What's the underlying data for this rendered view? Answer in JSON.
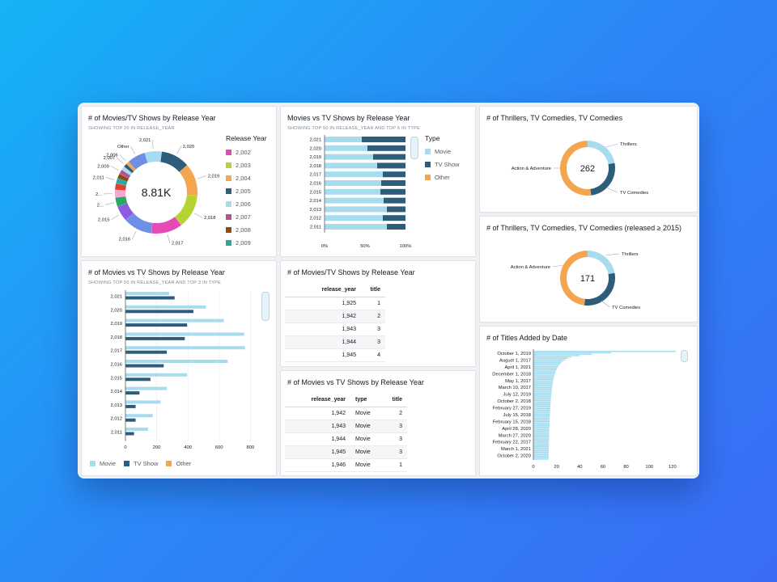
{
  "panel1": {
    "title": "# of Movies/TV Shows by Release Year",
    "subtitle": "SHOWING TOP 20 IN RELEASE_YEAR",
    "center_value": "8.81K",
    "legend_title": "Release Year"
  },
  "panel2": {
    "title": "Movies vs TV Shows by Release Year",
    "subtitle": "SHOWING TOP 50 IN RELEASE_YEAR AND TOP 5 IN TYPE",
    "legend_title": "Type"
  },
  "panel3": {
    "title": "# of Thrillers, TV Comedies, TV Comedies",
    "center_value": "262"
  },
  "panel4": {
    "title": "# of Thrillers, TV Comedies, TV Comedies (released ≥ 2015)",
    "center_value": "171"
  },
  "panel5": {
    "title": "# of Movies vs TV Shows by Release Year",
    "subtitle": "SHOWING TOP 50 IN RELEASE_YEAR AND TOP 3 IN TYPE"
  },
  "panel6": {
    "title": "# of Movies/TV Shows by Release Year",
    "columns": [
      "release_year",
      "title"
    ],
    "rows": [
      [
        "1,925",
        "1"
      ],
      [
        "1,942",
        "2"
      ],
      [
        "1,943",
        "3"
      ],
      [
        "1,944",
        "3"
      ],
      [
        "1,945",
        "4"
      ]
    ]
  },
  "panel7": {
    "title": "# of Movies vs TV Shows by Release Year",
    "columns": [
      "release_year",
      "type",
      "title"
    ],
    "rows": [
      [
        "1,942",
        "Movie",
        "2"
      ],
      [
        "1,943",
        "Movie",
        "3"
      ],
      [
        "1,944",
        "Movie",
        "3"
      ],
      [
        "1,945",
        "Movie",
        "3"
      ],
      [
        "1,946",
        "Movie",
        "1"
      ]
    ]
  },
  "panel8": {
    "title": "# of Titles Added by Date"
  },
  "colors": {
    "movie": "#a6dcee",
    "tvshow": "#2e5c7b",
    "other": "#f3a54f"
  },
  "chart_data": [
    {
      "id": "donut-release-year",
      "type": "pie",
      "title": "# of Movies/TV Shows by Release Year",
      "total_label": "8.81K",
      "legend_title": "Release Year",
      "legend": [
        {
          "label": "2,002",
          "color": "#e64ab5"
        },
        {
          "label": "2,003",
          "color": "#b6d334"
        },
        {
          "label": "2,004",
          "color": "#f3a54f"
        },
        {
          "label": "2,005",
          "color": "#2e5c7b"
        },
        {
          "label": "2,006",
          "color": "#a6dcee"
        },
        {
          "label": "2,007",
          "color": "#b05494"
        },
        {
          "label": "2,008",
          "color": "#8a4b14"
        },
        {
          "label": "2,009",
          "color": "#25a9a5"
        }
      ],
      "slice_labels": [
        "2,021",
        "2,020",
        "2,019",
        "2,018",
        "2,017",
        "2,016",
        "2,015",
        "2...",
        "2...",
        "2,011",
        "2,009",
        "2,006",
        "Other"
      ],
      "slices": [
        {
          "label": "2,021",
          "value": 0.065,
          "color": "#a6dcee"
        },
        {
          "label": "2,020",
          "value": 0.11,
          "color": "#2e5c7b"
        },
        {
          "label": "2,019",
          "value": 0.125,
          "color": "#f3a54f"
        },
        {
          "label": "2,018",
          "value": 0.13,
          "color": "#b6d334"
        },
        {
          "label": "2,017",
          "value": 0.12,
          "color": "#e64ab5"
        },
        {
          "label": "2,016",
          "value": 0.11,
          "color": "#6f8fe6"
        },
        {
          "label": "2,015",
          "value": 0.06,
          "color": "#8e5be0"
        },
        {
          "label": "2,014",
          "value": 0.035,
          "color": "#2ba866"
        },
        {
          "label": "2,013",
          "value": 0.03,
          "color": "#f6a6d0"
        },
        {
          "label": "2,012",
          "value": 0.025,
          "color": "#e0412d"
        },
        {
          "label": "2,011",
          "value": 0.02,
          "color": "#25a9a5"
        },
        {
          "label": "2,010",
          "value": 0.018,
          "color": "#8a4b14"
        },
        {
          "label": "2,009",
          "value": 0.017,
          "color": "#b05494"
        },
        {
          "label": "2,008",
          "value": 0.015,
          "color": "#a6dcee"
        },
        {
          "label": "2,007",
          "value": 0.013,
          "color": "#2e5c7b"
        },
        {
          "label": "2,006",
          "value": 0.012,
          "color": "#f3a54f"
        },
        {
          "label": "Other",
          "value": 0.07,
          "color": "#6f8fe6"
        }
      ]
    },
    {
      "id": "stacked-type-by-year",
      "type": "bar",
      "stacked": true,
      "percent": true,
      "title": "Movies vs TV Shows by Release Year",
      "categories": [
        "2,021",
        "2,020",
        "2,019",
        "2,018",
        "2,017",
        "2,016",
        "2,015",
        "2,014",
        "2,013",
        "2,012",
        "2,011"
      ],
      "series": [
        {
          "name": "Movie",
          "values": [
            0.46,
            0.53,
            0.6,
            0.65,
            0.72,
            0.7,
            0.69,
            0.73,
            0.77,
            0.72,
            0.77
          ]
        },
        {
          "name": "TV Show",
          "values": [
            0.54,
            0.47,
            0.4,
            0.35,
            0.28,
            0.3,
            0.31,
            0.27,
            0.23,
            0.28,
            0.23
          ]
        },
        {
          "name": "Other",
          "values": [
            0,
            0,
            0,
            0,
            0,
            0,
            0,
            0,
            0,
            0,
            0
          ]
        }
      ],
      "xticks": [
        "0%",
        "50%",
        "100%"
      ]
    },
    {
      "id": "donut-genres",
      "type": "pie",
      "title": "# of Thrillers, TV Comedies, TV Comedies",
      "total_label": "262",
      "slices": [
        {
          "label": "Thrillers",
          "value": 0.22,
          "color": "#a6dcee"
        },
        {
          "label": "TV Comedies",
          "value": 0.26,
          "color": "#2e5c7b"
        },
        {
          "label": "Action & Adventure",
          "value": 0.52,
          "color": "#f3a54f"
        }
      ]
    },
    {
      "id": "donut-genres-2015",
      "type": "pie",
      "title": "# of Thrillers, TV Comedies, TV Comedies (released ≥ 2015)",
      "total_label": "171",
      "slices": [
        {
          "label": "Thrillers",
          "value": 0.22,
          "color": "#a6dcee"
        },
        {
          "label": "TV Comedies",
          "value": 0.3,
          "color": "#2e5c7b"
        },
        {
          "label": "Action & Adventure",
          "value": 0.48,
          "color": "#f3a54f"
        }
      ]
    },
    {
      "id": "grouped-type-by-year",
      "type": "bar",
      "title": "# of Movies vs TV Shows by Release Year",
      "categories": [
        "2,021",
        "2,020",
        "2,019",
        "2,018",
        "2,017",
        "2,016",
        "2,015",
        "2,014",
        "2,013",
        "2,012",
        "2,011"
      ],
      "series": [
        {
          "name": "Movie",
          "values": [
            280,
            515,
            630,
            760,
            765,
            655,
            395,
            265,
            225,
            175,
            145
          ]
        },
        {
          "name": "TV Show",
          "values": [
            315,
            435,
            395,
            380,
            265,
            245,
            160,
            90,
            65,
            65,
            55
          ]
        }
      ],
      "xticks": [
        0,
        200,
        400,
        600,
        800
      ],
      "xlim": [
        0,
        850
      ],
      "legend": [
        "Movie",
        "TV Show",
        "Other"
      ]
    },
    {
      "id": "titles-added-by-date",
      "type": "bar",
      "title": "# of Titles Added by Date",
      "labels": [
        "October 1, 2019",
        "August 1, 2017",
        "April 1, 2021",
        "December 1, 2018",
        "May 1, 2017",
        "March 10, 2017",
        "July 12, 2019",
        "October 2, 2018",
        "February 27, 2019",
        "July 15, 2018",
        "February 15, 2018",
        "April 28, 2020",
        "March 27, 2020",
        "February 22, 2017",
        "March 1, 2021",
        "October 2, 2020"
      ],
      "values": [
        110,
        75,
        38,
        27,
        23,
        20,
        19,
        17,
        16,
        15,
        15,
        14,
        14,
        13,
        13,
        12
      ],
      "xticks": [
        0,
        20,
        40,
        60,
        80,
        100,
        120
      ],
      "xlim": [
        0,
        125
      ]
    }
  ]
}
